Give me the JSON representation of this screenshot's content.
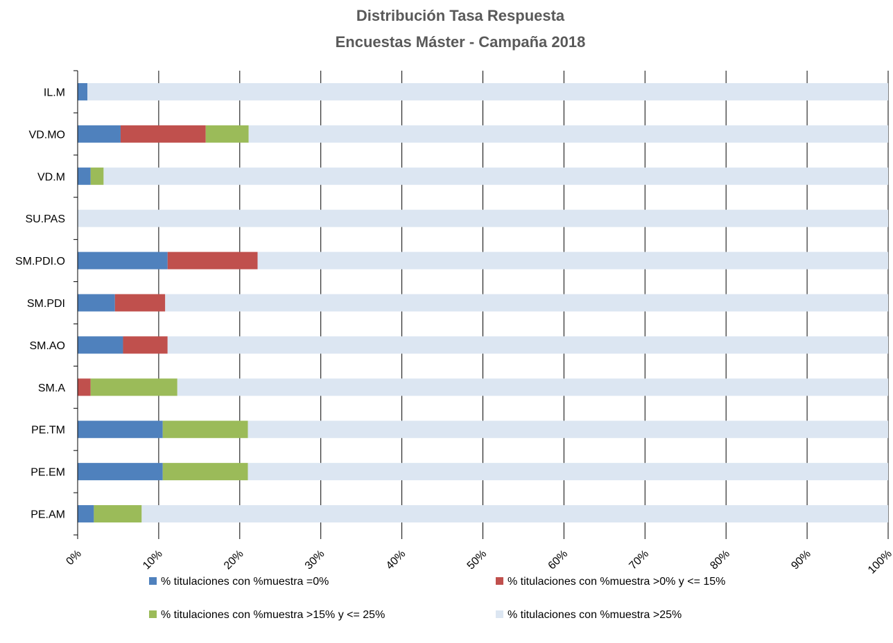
{
  "chart_data": {
    "type": "bar",
    "orientation": "horizontal",
    "stacked": "percent",
    "title": "Distribución Tasa Respuesta",
    "subtitle": "Encuestas Máster - Campaña 2018",
    "categories": [
      "PE.AM",
      "PE.EM",
      "PE.TM",
      "SM.A",
      "SM.AO",
      "SM.PDI",
      "SM.PDI.O",
      "SU.PAS",
      "VD.M",
      "VD.MO",
      "IL.M"
    ],
    "series": [
      {
        "name": "% titulaciones con %muestra  =0%",
        "color": "#4F81BD",
        "values": [
          2.0,
          10.5,
          10.5,
          0.0,
          5.6,
          4.6,
          11.1,
          0.0,
          1.6,
          5.3,
          1.2
        ]
      },
      {
        "name": "% titulaciones con %muestra  >0% y <= 15%",
        "color": "#C0504D",
        "values": [
          0.0,
          0.0,
          0.0,
          1.6,
          5.5,
          6.2,
          11.1,
          0.0,
          0.0,
          10.5,
          0.0
        ]
      },
      {
        "name": "% titulaciones con %muestra  >15% y <= 25%",
        "color": "#9BBB59",
        "values": [
          5.9,
          10.5,
          10.5,
          10.7,
          0.0,
          0.0,
          0.0,
          0.0,
          1.6,
          5.3,
          0.0
        ]
      },
      {
        "name": "% titulaciones con %muestra  >25%",
        "color": "#DCE6F2",
        "values": [
          92.1,
          79.0,
          79.0,
          87.7,
          88.9,
          89.2,
          77.8,
          100.0,
          96.8,
          78.9,
          98.8
        ]
      }
    ],
    "xlim": [
      0,
      100
    ],
    "x_ticks": [
      "0%",
      "10%",
      "20%",
      "30%",
      "40%",
      "50%",
      "60%",
      "70%",
      "80%",
      "90%",
      "100%"
    ],
    "grid": "vertical",
    "grid_color": "#000000",
    "legend_position": "bottom"
  }
}
